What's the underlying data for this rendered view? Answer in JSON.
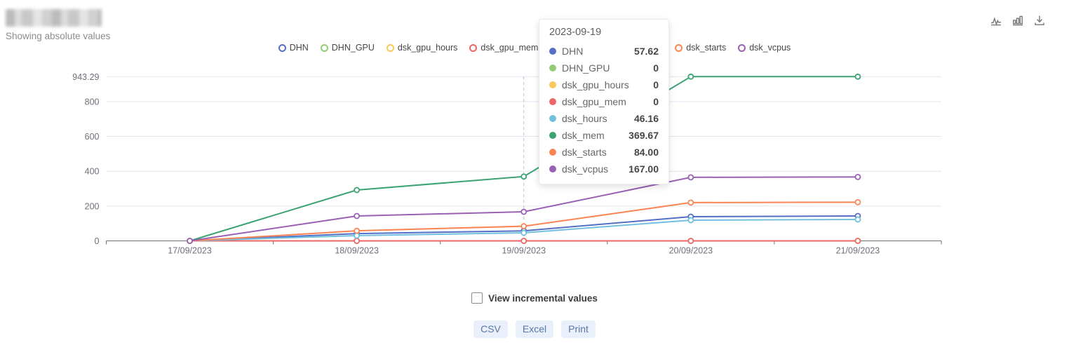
{
  "header": {
    "title_redacted": true,
    "subtitle": "Showing absolute values"
  },
  "toolbar": {
    "icons": [
      "line-chart-icon",
      "bar-chart-icon",
      "download-icon"
    ]
  },
  "legend": {
    "items": [
      {
        "label": "DHN",
        "color": "#5470c6"
      },
      {
        "label": "DHN_GPU",
        "color": "#91cc75"
      },
      {
        "label": "dsk_gpu_hours",
        "color": "#fac858"
      },
      {
        "label": "dsk_gpu_mem",
        "color": "#ee6666"
      },
      {
        "label": "dsk_hours",
        "color": "#73c0de"
      },
      {
        "label": "dsk_mem",
        "color": "#3ba272"
      },
      {
        "label": "dsk_starts",
        "color": "#fc8452"
      },
      {
        "label": "dsk_vcpus",
        "color": "#9a60b4"
      }
    ]
  },
  "tooltip": {
    "date": "2023-09-19",
    "rows": [
      {
        "name": "DHN",
        "value": "57.62",
        "color": "#5470c6"
      },
      {
        "name": "DHN_GPU",
        "value": "0",
        "color": "#91cc75"
      },
      {
        "name": "dsk_gpu_hours",
        "value": "0",
        "color": "#fac858"
      },
      {
        "name": "dsk_gpu_mem",
        "value": "0",
        "color": "#ee6666"
      },
      {
        "name": "dsk_hours",
        "value": "46.16",
        "color": "#73c0de"
      },
      {
        "name": "dsk_mem",
        "value": "369.67",
        "color": "#3ba272"
      },
      {
        "name": "dsk_starts",
        "value": "84.00",
        "color": "#fc8452"
      },
      {
        "name": "dsk_vcpus",
        "value": "167.00",
        "color": "#9a60b4"
      }
    ]
  },
  "chart_data": {
    "type": "line",
    "x": [
      "17/09/2023",
      "18/09/2023",
      "19/09/2023",
      "20/09/2023",
      "21/09/2023"
    ],
    "series": [
      {
        "name": "DHN",
        "color": "#5470c6",
        "values": [
          0,
          42,
          57.62,
          139,
          143
        ]
      },
      {
        "name": "DHN_GPU",
        "color": "#91cc75",
        "values": [
          0,
          0,
          0,
          0,
          0
        ]
      },
      {
        "name": "dsk_gpu_hours",
        "color": "#fac858",
        "values": [
          0,
          0,
          0,
          0,
          0
        ]
      },
      {
        "name": "dsk_gpu_mem",
        "color": "#ee6666",
        "values": [
          0,
          0,
          0,
          0,
          0
        ]
      },
      {
        "name": "dsk_hours",
        "color": "#73c0de",
        "values": [
          0,
          30,
          46.16,
          119,
          123
        ]
      },
      {
        "name": "dsk_mem",
        "color": "#3ba272",
        "values": [
          0,
          292,
          369.67,
          943.29,
          943.29
        ]
      },
      {
        "name": "dsk_starts",
        "color": "#fc8452",
        "values": [
          0,
          58,
          84,
          220,
          222
        ]
      },
      {
        "name": "dsk_vcpus",
        "color": "#9a60b4",
        "values": [
          0,
          143,
          167,
          365,
          367
        ]
      }
    ],
    "yticks": [
      {
        "value": 0,
        "label": "0"
      },
      {
        "value": 200,
        "label": "200"
      },
      {
        "value": 400,
        "label": "400"
      },
      {
        "value": 600,
        "label": "600"
      },
      {
        "value": 800,
        "label": "800"
      },
      {
        "value": 943.29,
        "label": "943.29"
      }
    ],
    "ylim": [
      0,
      943.29
    ],
    "grid": true,
    "legend_position": "top",
    "hover_x_index": 2,
    "colors": {
      "grid_line": "#E0E6F1",
      "axis_line": "#6E7079",
      "axis_label": "#6E7079",
      "hover_pointer": "#b6b9c0"
    }
  },
  "controls": {
    "checkbox": {
      "label": "View incremental values",
      "checked": false
    },
    "buttons": [
      "CSV",
      "Excel",
      "Print"
    ]
  }
}
